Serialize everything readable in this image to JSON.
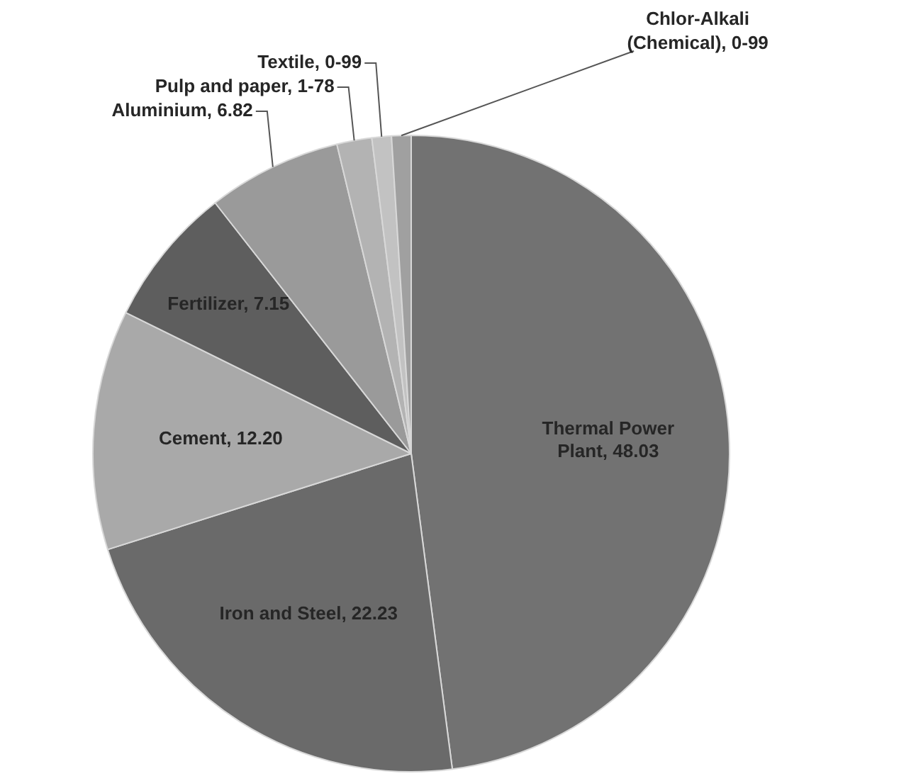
{
  "chart_data": {
    "type": "pie",
    "categories": [
      "Thermal Power Plant",
      "Iron and Steel",
      "Cement",
      "Fertilizer",
      "Aluminium",
      "Pulp and paper",
      "Textile",
      "Chlor-Alkali (Chemical)"
    ],
    "values": [
      48.03,
      22.23,
      12.2,
      7.15,
      6.82,
      1.78,
      0.99,
      0.99
    ],
    "value_labels": [
      "48.03",
      "22.23",
      "12.20",
      "7.15",
      "6.82",
      "1-78",
      "0-99",
      "0-99"
    ],
    "colors": [
      "#727272",
      "#6a6a6a",
      "#a9a9a9",
      "#5e5e5e",
      "#9a9a9a",
      "#b3b3b3",
      "#c2c2c2",
      "#a0a0a0"
    ],
    "legend": false
  }
}
